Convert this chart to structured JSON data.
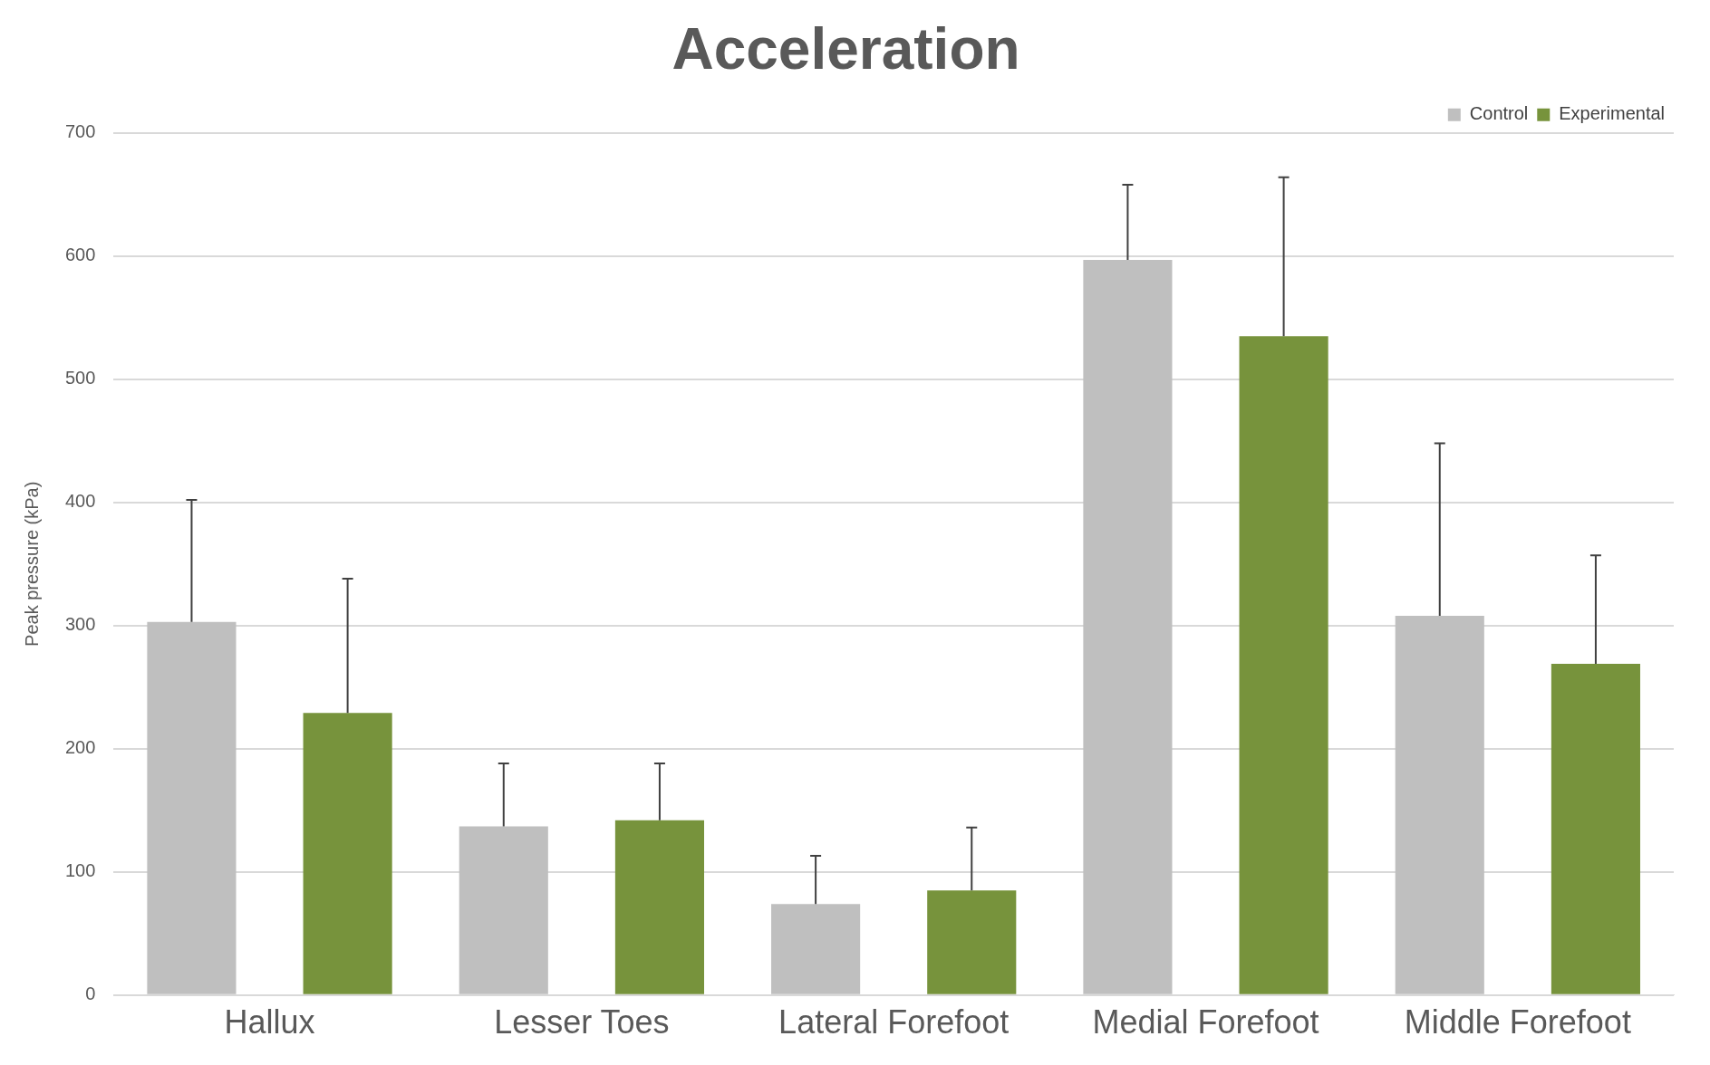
{
  "chart_data": {
    "type": "bar",
    "title": "Acceleration",
    "ylabel": "Peak pressure (kPa)",
    "categories": [
      "Hallux",
      "Lesser Toes",
      "Lateral Forefoot",
      "Medial Forefoot",
      "Middle Forefoot"
    ],
    "series": [
      {
        "name": "Control",
        "color": "#bfbfbf",
        "values": [
          303,
          137,
          74,
          597,
          308
        ],
        "errors": [
          [
            303,
            402
          ],
          [
            137,
            188
          ],
          [
            74,
            113
          ],
          [
            597,
            658
          ],
          [
            308,
            448
          ]
        ]
      },
      {
        "name": "Experimental",
        "color": "#77933c",
        "values": [
          229,
          142,
          85,
          535,
          269
        ],
        "errors": [
          [
            229,
            338
          ],
          [
            142,
            188
          ],
          [
            85,
            136
          ],
          [
            535,
            664
          ],
          [
            269,
            357
          ]
        ]
      }
    ],
    "ylim": [
      0,
      700
    ],
    "yticks": [
      0,
      100,
      200,
      300,
      400,
      500,
      600,
      700
    ],
    "grid": "y",
    "legend": "top right"
  }
}
